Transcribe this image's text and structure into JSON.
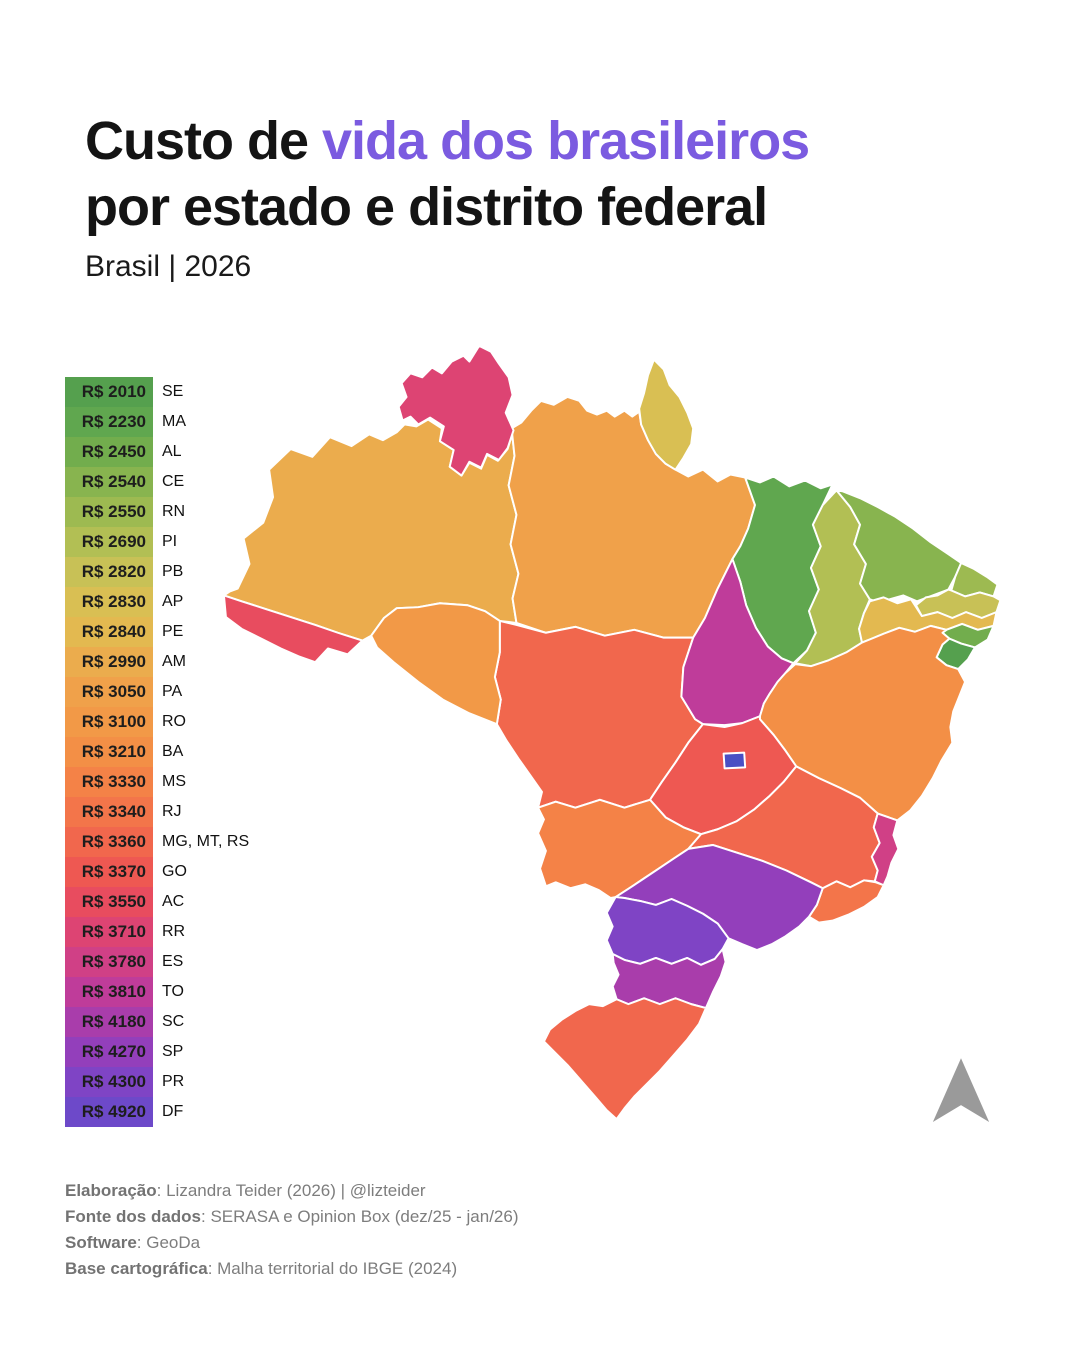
{
  "title": {
    "part1": "Custo de ",
    "part2": "vida dos brasileiros",
    "line2": "por estado e distrito federal",
    "subtitle": "Brasil | 2026",
    "accent_color": "#7b5be0"
  },
  "legend": {
    "rows": [
      {
        "value": "R$ 2010",
        "label": "SE",
        "codes": [
          "SE"
        ],
        "color": "#55a04e"
      },
      {
        "value": "R$ 2230",
        "label": "MA",
        "codes": [
          "MA"
        ],
        "color": "#60a74f"
      },
      {
        "value": "R$ 2450",
        "label": "AL",
        "codes": [
          "AL"
        ],
        "color": "#72ad4d"
      },
      {
        "value": "R$ 2540",
        "label": "CE",
        "codes": [
          "CE"
        ],
        "color": "#88b44f"
      },
      {
        "value": "R$ 2550",
        "label": "RN",
        "codes": [
          "RN"
        ],
        "color": "#9dba51"
      },
      {
        "value": "R$ 2690",
        "label": "PI",
        "codes": [
          "PI"
        ],
        "color": "#b2bf54"
      },
      {
        "value": "R$ 2820",
        "label": "PB",
        "codes": [
          "PB"
        ],
        "color": "#c8c156"
      },
      {
        "value": "R$ 2830",
        "label": "AP",
        "codes": [
          "AP"
        ],
        "color": "#d9bf53"
      },
      {
        "value": "R$ 2840",
        "label": "PE",
        "codes": [
          "PE"
        ],
        "color": "#e3b950"
      },
      {
        "value": "R$ 2990",
        "label": "AM",
        "codes": [
          "AM"
        ],
        "color": "#ebac4d"
      },
      {
        "value": "R$ 3050",
        "label": "PA",
        "codes": [
          "PA"
        ],
        "color": "#f0a14a"
      },
      {
        "value": "R$ 3100",
        "label": "RO",
        "codes": [
          "RO"
        ],
        "color": "#f29947"
      },
      {
        "value": "R$ 3210",
        "label": "BA",
        "codes": [
          "BA"
        ],
        "color": "#f38f46"
      },
      {
        "value": "R$ 3330",
        "label": "MS",
        "codes": [
          "MS"
        ],
        "color": "#f48247"
      },
      {
        "value": "R$ 3340",
        "label": "RJ",
        "codes": [
          "RJ"
        ],
        "color": "#f3754a"
      },
      {
        "value": "R$ 3360",
        "label": "MG, MT, RS",
        "codes": [
          "MG",
          "MT",
          "RS"
        ],
        "color": "#f1674d"
      },
      {
        "value": "R$ 3370",
        "label": "GO",
        "codes": [
          "GO"
        ],
        "color": "#ee5852"
      },
      {
        "value": "R$ 3550",
        "label": "AC",
        "codes": [
          "AC"
        ],
        "color": "#e84c5f"
      },
      {
        "value": "R$ 3710",
        "label": "RR",
        "codes": [
          "RR"
        ],
        "color": "#dd4473"
      },
      {
        "value": "R$ 3780",
        "label": "ES",
        "codes": [
          "ES"
        ],
        "color": "#d04086"
      },
      {
        "value": "R$ 3810",
        "label": "TO",
        "codes": [
          "TO"
        ],
        "color": "#bf3c9a"
      },
      {
        "value": "R$ 4180",
        "label": "SC",
        "codes": [
          "SC"
        ],
        "color": "#a93dab"
      },
      {
        "value": "R$ 4270",
        "label": "SP",
        "codes": [
          "SP"
        ],
        "color": "#933fbb"
      },
      {
        "value": "R$ 4300",
        "label": "PR",
        "codes": [
          "PR"
        ],
        "color": "#7f44c5"
      },
      {
        "value": "R$ 4920",
        "label": "DF",
        "codes": [
          "DF"
        ],
        "color": "#6d49c9"
      }
    ]
  },
  "map": {
    "stroke": "#ffffff",
    "df_fill": "#4a4fc4"
  },
  "north_arrow": {
    "color": "#9a9a9a"
  },
  "footer": {
    "lines": [
      {
        "label": "Elaboração",
        "text": "Lizandra Teider (2026) | @lizteider"
      },
      {
        "label": "Fonte dos dados",
        "text": "SERASA e Opinion Box (dez/25 - jan/26)"
      },
      {
        "label": "Software",
        "text": "GeoDa"
      },
      {
        "label": "Base cartográfica",
        "text": "Malha territorial do IBGE (2024)"
      }
    ]
  },
  "chart_data": {
    "type": "heatmap",
    "title": "Custo de vida dos brasileiros por estado e distrito federal",
    "subtitle": "Brasil | 2026",
    "unit": "R$",
    "categories": [
      "SE",
      "MA",
      "AL",
      "CE",
      "RN",
      "PI",
      "PB",
      "AP",
      "PE",
      "AM",
      "PA",
      "RO",
      "BA",
      "MS",
      "RJ",
      "MG",
      "MT",
      "RS",
      "GO",
      "AC",
      "RR",
      "ES",
      "TO",
      "SC",
      "SP",
      "PR",
      "DF"
    ],
    "values": [
      2010,
      2230,
      2450,
      2540,
      2550,
      2690,
      2820,
      2830,
      2840,
      2990,
      3050,
      3100,
      3210,
      3330,
      3340,
      3360,
      3360,
      3360,
      3370,
      3550,
      3710,
      3780,
      3810,
      4180,
      4270,
      4300,
      4920
    ],
    "legend_position": "left"
  }
}
